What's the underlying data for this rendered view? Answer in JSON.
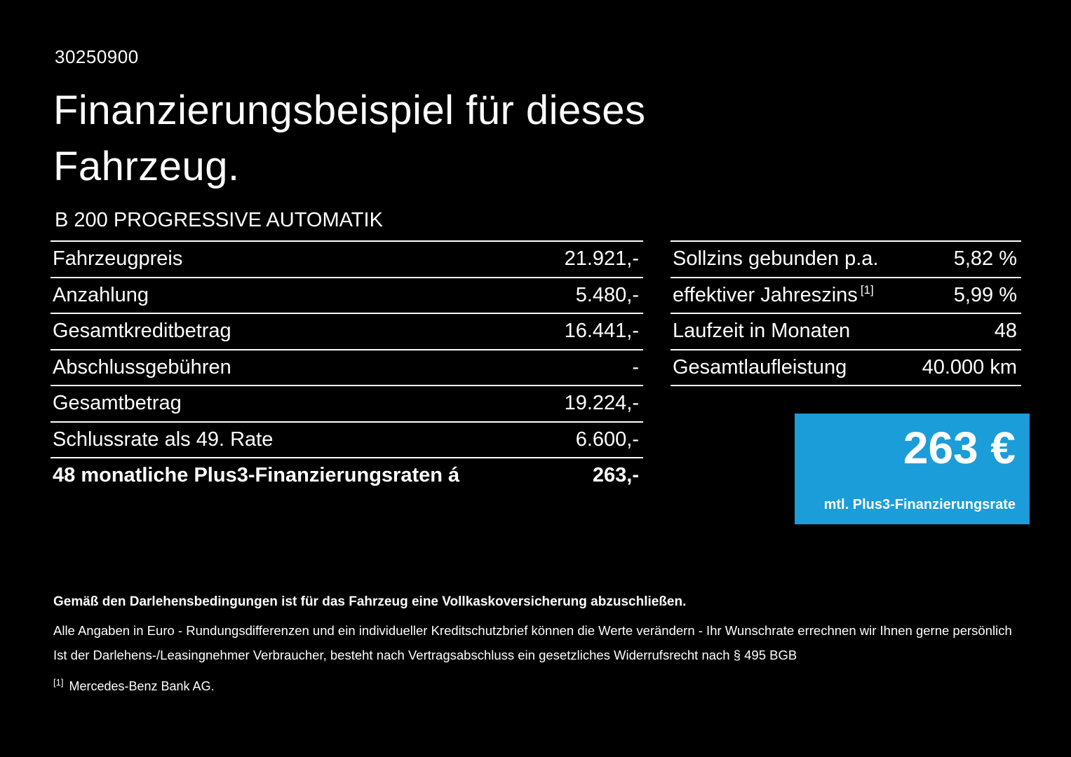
{
  "page": {
    "doc_id": "30250900",
    "title_line1": "Finanzierungsbeispiel für dieses",
    "title_line2": "Fahrzeug.",
    "vehicle_name": "B 200 PROGRESSIVE AUTOMATIK"
  },
  "left_table": {
    "rows": [
      {
        "label": "Fahrzeugpreis",
        "value": "21.921,-"
      },
      {
        "label": "Anzahlung",
        "value": "5.480,-"
      },
      {
        "label": "Gesamtkreditbetrag",
        "value": "16.441,-"
      },
      {
        "label": "Abschlussgebühren",
        "value": "-"
      },
      {
        "label": "Gesamtbetrag",
        "value": "19.224,-"
      },
      {
        "label": "Schlussrate als 49. Rate",
        "value": "6.600,-"
      },
      {
        "label": "48 monatliche Plus3-Finanzierungsraten á",
        "value": "263,-"
      }
    ]
  },
  "right_table": {
    "rows": [
      {
        "label": "Sollzins gebunden p.a.",
        "value": "5,82 %"
      },
      {
        "label": "effektiver Jahreszins",
        "sup": "[1]",
        "value": "5,99 %"
      },
      {
        "label": "Laufzeit in Monaten",
        "value": "48"
      },
      {
        "label": "Gesamtlaufleistung",
        "value": "40.000 km"
      }
    ]
  },
  "rate_box": {
    "amount": "263 €",
    "caption": "mtl. Plus3-Finanzierungsrate",
    "background": "#1b9dd9"
  },
  "footer": {
    "bold_line": "Gemäß den Darlehensbedingungen ist für das Fahrzeug eine Vollkaskoversicherung abzuschließen.",
    "line2": "Alle Angaben in Euro - Rundungsdifferenzen und ein individueller Kreditschutzbrief können die Werte verändern - Ihr Wunschrate errechnen wir Ihnen gerne persönlich",
    "line3": "Ist der Darlehens-/Leasingnehmer Verbraucher, besteht nach Vertragsabschluss ein gesetzliches Widerrufsrecht nach § 495 BGB",
    "footnote_marker": "[1]",
    "footnote_text": "Mercedes-Benz Bank AG."
  }
}
